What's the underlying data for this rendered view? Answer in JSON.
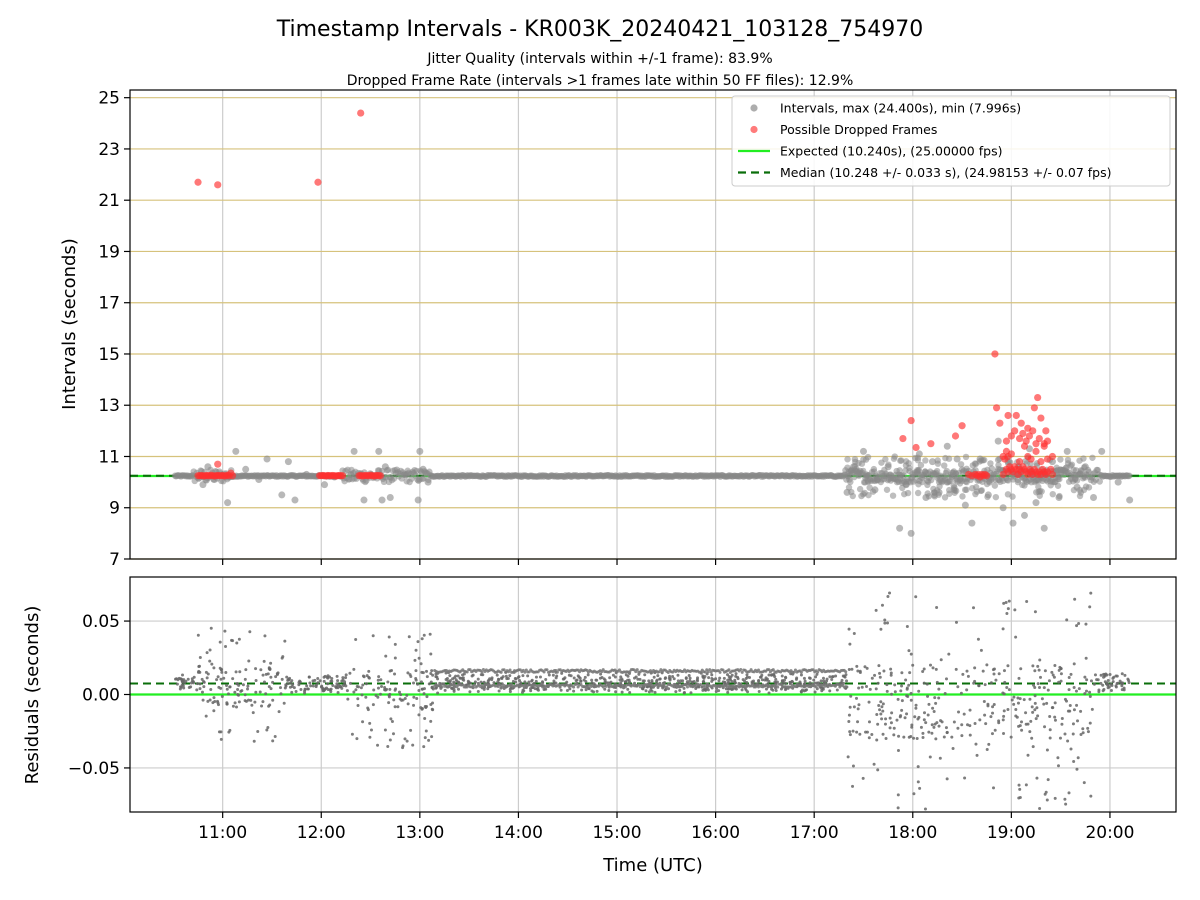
{
  "chart_data": [
    {
      "type": "scatter",
      "title": "Timestamp Intervals - KR003K_20240421_103128_754970",
      "subtitle_1": "Jitter Quality (intervals within +/-1 frame): 83.9%",
      "subtitle_2": "Dropped Frame Rate (intervals >1 frames late within 50 FF files): 12.9%",
      "ylabel": "Intervals (seconds)",
      "xlabel": "",
      "ylim": [
        7,
        25.3
      ],
      "xlim_hours": [
        10.06,
        20.67
      ],
      "yticks": [
        "7",
        "9",
        "11",
        "13",
        "15",
        "17",
        "19",
        "21",
        "23",
        "25"
      ],
      "grid": true,
      "legend_placement": "top-right",
      "legend": [
        {
          "label": "Intervals, max (24.400s), min (7.996s)",
          "kind": "dot",
          "color": "#999999"
        },
        {
          "label": "Possible Dropped Frames",
          "kind": "dot",
          "color": "#ff5a5a"
        },
        {
          "label": "Expected (10.240s), (25.00000 fps)",
          "kind": "line",
          "color": "#22ee22"
        },
        {
          "label": "Median (10.248 +/- 0.033 s), (24.98153 +/- 0.07 fps)",
          "kind": "dashed",
          "color": "#0a6e0a"
        }
      ],
      "expected_interval": 10.24,
      "median_interval": 10.248,
      "series": [
        {
          "name": "Intervals, max (24.400s), min (7.996s)",
          "color": "#999999",
          "x": [
            "10:48",
            "10:51",
            "10:55",
            "11:03",
            "11:08",
            "11:14",
            "11:22",
            "11:27",
            "11:36",
            "11:40",
            "11:44",
            "11:51",
            "12:02",
            "12:08",
            "12:18",
            "12:20",
            "12:26",
            "12:35",
            "12:37",
            "12:39",
            "12:42",
            "12:52",
            "12:59",
            "13:00",
            "13:02",
            "13:05",
            "17:20",
            "17:24",
            "17:30",
            "17:37",
            "17:45",
            "17:52",
            "17:56",
            "17:59",
            "18:04",
            "18:08",
            "18:12",
            "18:16",
            "18:21",
            "18:27",
            "18:32",
            "18:36",
            "18:41",
            "18:46",
            "18:52",
            "18:55",
            "18:58",
            "19:01",
            "19:04",
            "19:08",
            "19:11",
            "19:15",
            "19:20",
            "19:25",
            "19:29",
            "19:34",
            "19:40",
            "19:45",
            "19:50",
            "19:55",
            "20:05",
            "20:12"
          ],
          "y": [
            9.9,
            10.6,
            10.1,
            9.2,
            11.2,
            10.5,
            10.1,
            10.9,
            9.5,
            10.8,
            9.3,
            10.3,
            9.9,
            10.2,
            10.3,
            11.2,
            9.3,
            11.2,
            9.3,
            10.6,
            9.4,
            10.3,
            9.3,
            11.2,
            10.5,
            10.0,
            9.6,
            10.6,
            11.2,
            9.7,
            10.6,
            8.2,
            9.9,
            8.0,
            11.1,
            9.4,
            10.8,
            9.6,
            11.4,
            10.9,
            9.1,
            8.4,
            10.9,
            9.5,
            11.6,
            9.0,
            10.8,
            8.4,
            10.1,
            8.7,
            11.3,
            9.2,
            8.2,
            10.8,
            9.4,
            11.2,
            9.8,
            10.6,
            9.4,
            11.2,
            10.0,
            9.3
          ]
        },
        {
          "name": "Possible Dropped Frames",
          "color": "#ff5a5a",
          "x": [
            "10:45",
            "10:46",
            "10:47",
            "10:48",
            "10:49",
            "10:50",
            "10:51",
            "10:52",
            "10:53",
            "10:54",
            "10:55",
            "10:56",
            "10:57",
            "10:58",
            "10:59",
            "11:00",
            "11:01",
            "11:02",
            "11:03",
            "11:04",
            "11:05",
            "11:06",
            "10:57",
            "11:59",
            "12:00",
            "12:01",
            "12:02",
            "12:03",
            "12:04",
            "12:05",
            "12:06",
            "12:07",
            "12:08",
            "12:09",
            "12:10",
            "12:11",
            "12:12",
            "12:13",
            "12:23",
            "12:24",
            "12:25",
            "12:26",
            "12:27",
            "12:28",
            "12:29",
            "12:30",
            "12:31",
            "12:32",
            "12:33",
            "12:34",
            "12:35",
            "12:36",
            "10:45",
            "10:57",
            "11:58",
            "12:24",
            "17:54",
            "17:59",
            "18:02",
            "18:11",
            "18:26",
            "18:30",
            "18:34",
            "18:36",
            "18:38",
            "18:39",
            "18:40",
            "18:41",
            "18:42",
            "18:43",
            "18:44",
            "18:45",
            "18:55",
            "18:57",
            "18:58",
            "18:59",
            "19:00",
            "19:01",
            "19:02",
            "19:03",
            "19:04",
            "19:05",
            "19:06",
            "19:07",
            "19:08",
            "19:09",
            "19:10",
            "19:11",
            "19:12",
            "19:13",
            "19:14",
            "19:15",
            "19:16",
            "19:17",
            "19:18",
            "19:19",
            "19:20",
            "19:21",
            "19:22",
            "19:24",
            "19:25",
            "18:55",
            "18:56",
            "18:57",
            "18:58",
            "19:00",
            "19:05",
            "19:08",
            "19:10",
            "19:12",
            "19:15",
            "19:18",
            "19:22",
            "19:25",
            "18:57",
            "19:00",
            "19:02",
            "19:05",
            "19:07",
            "19:09",
            "19:11",
            "19:13",
            "19:15",
            "19:17",
            "19:20",
            "19:22",
            "19:03",
            "19:06",
            "19:10",
            "19:14",
            "19:18",
            "19:21",
            "18:53",
            "18:58",
            "19:16",
            "18:51",
            "19:20",
            "18:50"
          ],
          "y": [
            10.25,
            10.25,
            10.26,
            10.25,
            10.24,
            10.26,
            10.25,
            10.25,
            10.27,
            10.25,
            10.24,
            10.25,
            10.26,
            10.25,
            10.25,
            10.26,
            10.24,
            10.25,
            10.27,
            10.25,
            10.35,
            10.25,
            10.7,
            10.25,
            10.25,
            10.26,
            10.25,
            10.24,
            10.26,
            10.25,
            10.25,
            10.26,
            10.25,
            10.24,
            10.25,
            10.26,
            10.25,
            10.25,
            10.25,
            10.26,
            10.24,
            10.25,
            10.26,
            10.25,
            10.25,
            10.27,
            10.25,
            10.24,
            10.25,
            10.26,
            10.25,
            10.25,
            21.7,
            21.6,
            21.7,
            24.4,
            11.7,
            12.4,
            11.35,
            11.5,
            11.8,
            12.2,
            10.3,
            10.25,
            10.3,
            10.25,
            10.3,
            10.2,
            10.3,
            10.25,
            10.3,
            10.25,
            10.3,
            10.5,
            10.4,
            10.6,
            10.5,
            10.4,
            10.6,
            10.5,
            10.3,
            10.5,
            10.4,
            10.6,
            10.5,
            10.4,
            10.3,
            10.5,
            10.4,
            10.3,
            10.5,
            10.4,
            10.3,
            10.4,
            10.3,
            10.5,
            10.4,
            10.3,
            10.4,
            10.5,
            10.3,
            11.0,
            10.9,
            11.2,
            11.0,
            11.1,
            10.8,
            11.4,
            11.0,
            10.9,
            11.2,
            10.8,
            10.9,
            11.0,
            11.6,
            11.8,
            12.0,
            11.7,
            11.9,
            11.6,
            11.8,
            12.0,
            11.5,
            11.7,
            11.4,
            11.6,
            12.6,
            12.3,
            12.1,
            12.9,
            12.5,
            12.0,
            12.3,
            12.6,
            13.3,
            12.9,
            11.5,
            15.0
          ]
        }
      ]
    },
    {
      "type": "scatter",
      "ylabel": "Residuals (seconds)",
      "xlabel": "Time (UTC)",
      "ylim": [
        -0.08,
        0.08
      ],
      "yticks": [
        "−0.05",
        "0.00",
        "0.05"
      ],
      "ytick_values": [
        -0.05,
        0.0,
        0.05
      ],
      "xticks": [
        "11:00",
        "12:00",
        "13:00",
        "14:00",
        "15:00",
        "16:00",
        "17:00",
        "18:00",
        "19:00",
        "20:00"
      ],
      "grid": true,
      "expected_residual": 0.0,
      "median_residual": 0.0075,
      "series": [
        {
          "name": "",
          "color": "#777777",
          "note_scatter_regions": [
            {
              "from": "10:31",
              "to": "10:44",
              "center": 0.008,
              "spread": 0.006
            },
            {
              "from": "10:44",
              "to": "11:38",
              "center": 0.005,
              "spread": 0.045
            },
            {
              "from": "11:38",
              "to": "12:15",
              "center": 0.007,
              "spread": 0.008
            },
            {
              "from": "12:15",
              "to": "13:09",
              "center": 0.003,
              "spread": 0.045
            },
            {
              "from": "13:09",
              "to": "17:20",
              "center": 0.008,
              "spread": 0.009
            },
            {
              "from": "17:20",
              "to": "19:50",
              "center": -0.005,
              "spread": 0.085
            },
            {
              "from": "19:50",
              "to": "20:12",
              "center": 0.008,
              "spread": 0.01
            }
          ]
        }
      ]
    }
  ]
}
